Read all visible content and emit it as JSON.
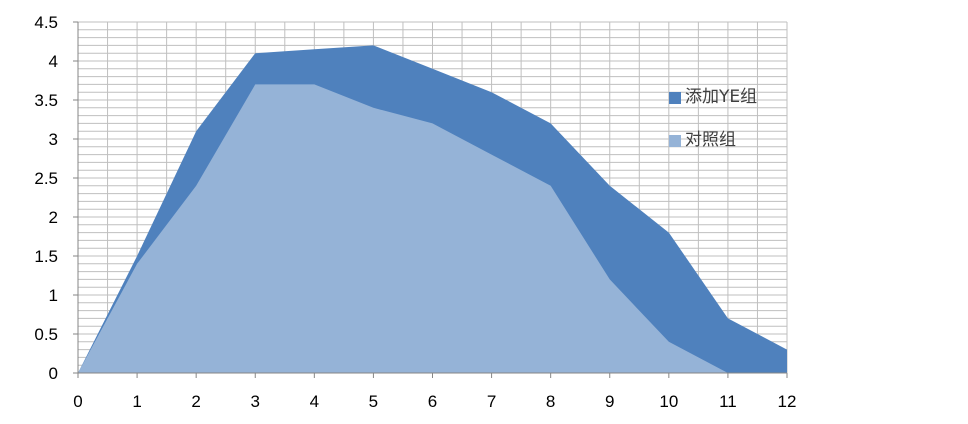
{
  "chart_data": {
    "type": "area",
    "x": [
      0,
      1,
      2,
      3,
      4,
      5,
      6,
      7,
      8,
      9,
      10,
      11,
      12
    ],
    "series": [
      {
        "name": "添加YE组",
        "color": "#4f81bd",
        "values": [
          0,
          1.5,
          3.1,
          4.1,
          4.15,
          4.2,
          3.9,
          3.6,
          3.2,
          2.4,
          1.8,
          0.7,
          0.3
        ]
      },
      {
        "name": "对照组",
        "color": "#95b3d7",
        "values": [
          0,
          1.4,
          2.4,
          3.7,
          3.7,
          3.4,
          3.2,
          2.8,
          2.4,
          1.2,
          0.4,
          0,
          0
        ]
      }
    ],
    "xticks": [
      "0",
      "1",
      "2",
      "3",
      "4",
      "5",
      "6",
      "7",
      "8",
      "9",
      "10",
      "11",
      "12"
    ],
    "yticks": [
      "0",
      "0.5",
      "1",
      "1.5",
      "2",
      "2.5",
      "3",
      "3.5",
      "4",
      "4.5"
    ],
    "xlim": [
      0,
      12
    ],
    "ylim": [
      0,
      4.5
    ],
    "grid": true,
    "grid_color": "#bfbfbf",
    "legend_position": "right",
    "title": "",
    "xlabel": "",
    "ylabel": ""
  }
}
